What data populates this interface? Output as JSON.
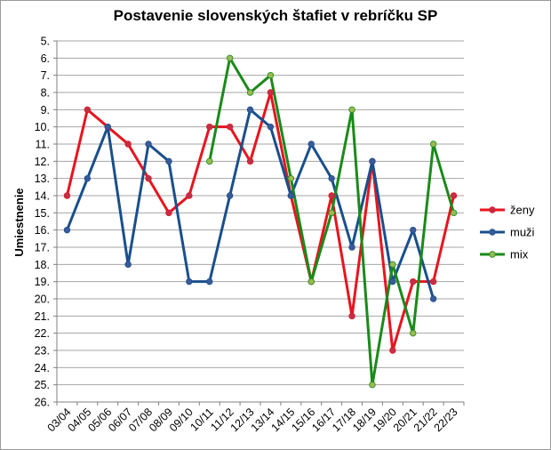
{
  "chart_data": {
    "type": "line",
    "title": "Postavenie slovenských štafiet v rebríčku SP",
    "xlabel": "",
    "ylabel": "Umiestnenie",
    "categories": [
      "03/04",
      "04/05",
      "05/06",
      "06/07",
      "07/08",
      "08/09",
      "09/10",
      "10/11",
      "11/12",
      "12/13",
      "13/14",
      "14/15",
      "15/16",
      "16/17",
      "17/18",
      "18/19",
      "19/20",
      "20/21",
      "21/22",
      "22/23"
    ],
    "y_tick_labels": [
      "5.",
      "6.",
      "7.",
      "8.",
      "9.",
      "10.",
      "11.",
      "12.",
      "13.",
      "14.",
      "15.",
      "16.",
      "17.",
      "18.",
      "19.",
      "20.",
      "21.",
      "22.",
      "23.",
      "24.",
      "25.",
      "26."
    ],
    "ylim": [
      5,
      26
    ],
    "y_inverted": true,
    "grid": "horizontal",
    "legend_position": "right",
    "series": [
      {
        "name": "ženy",
        "color": "#e8141e",
        "marker_color": "#c0304a",
        "values": [
          14,
          9,
          10,
          11,
          13,
          15,
          14,
          10,
          10,
          12,
          8,
          14,
          19,
          14,
          21,
          12,
          23,
          19,
          19,
          14
        ]
      },
      {
        "name": "muži",
        "color": "#1a4f8c",
        "marker_color": "#3a5a9a",
        "values": [
          16,
          13,
          10,
          18,
          11,
          12,
          19,
          19,
          14,
          9,
          10,
          14,
          11,
          13,
          17,
          12,
          19,
          16,
          20,
          null
        ]
      },
      {
        "name": "mix",
        "color": "#1a8a1a",
        "marker_color": "#9aba50",
        "values": [
          null,
          null,
          null,
          null,
          null,
          null,
          null,
          12,
          6,
          8,
          7,
          13,
          19,
          15,
          9,
          25,
          18,
          22,
          11,
          15
        ]
      }
    ]
  }
}
